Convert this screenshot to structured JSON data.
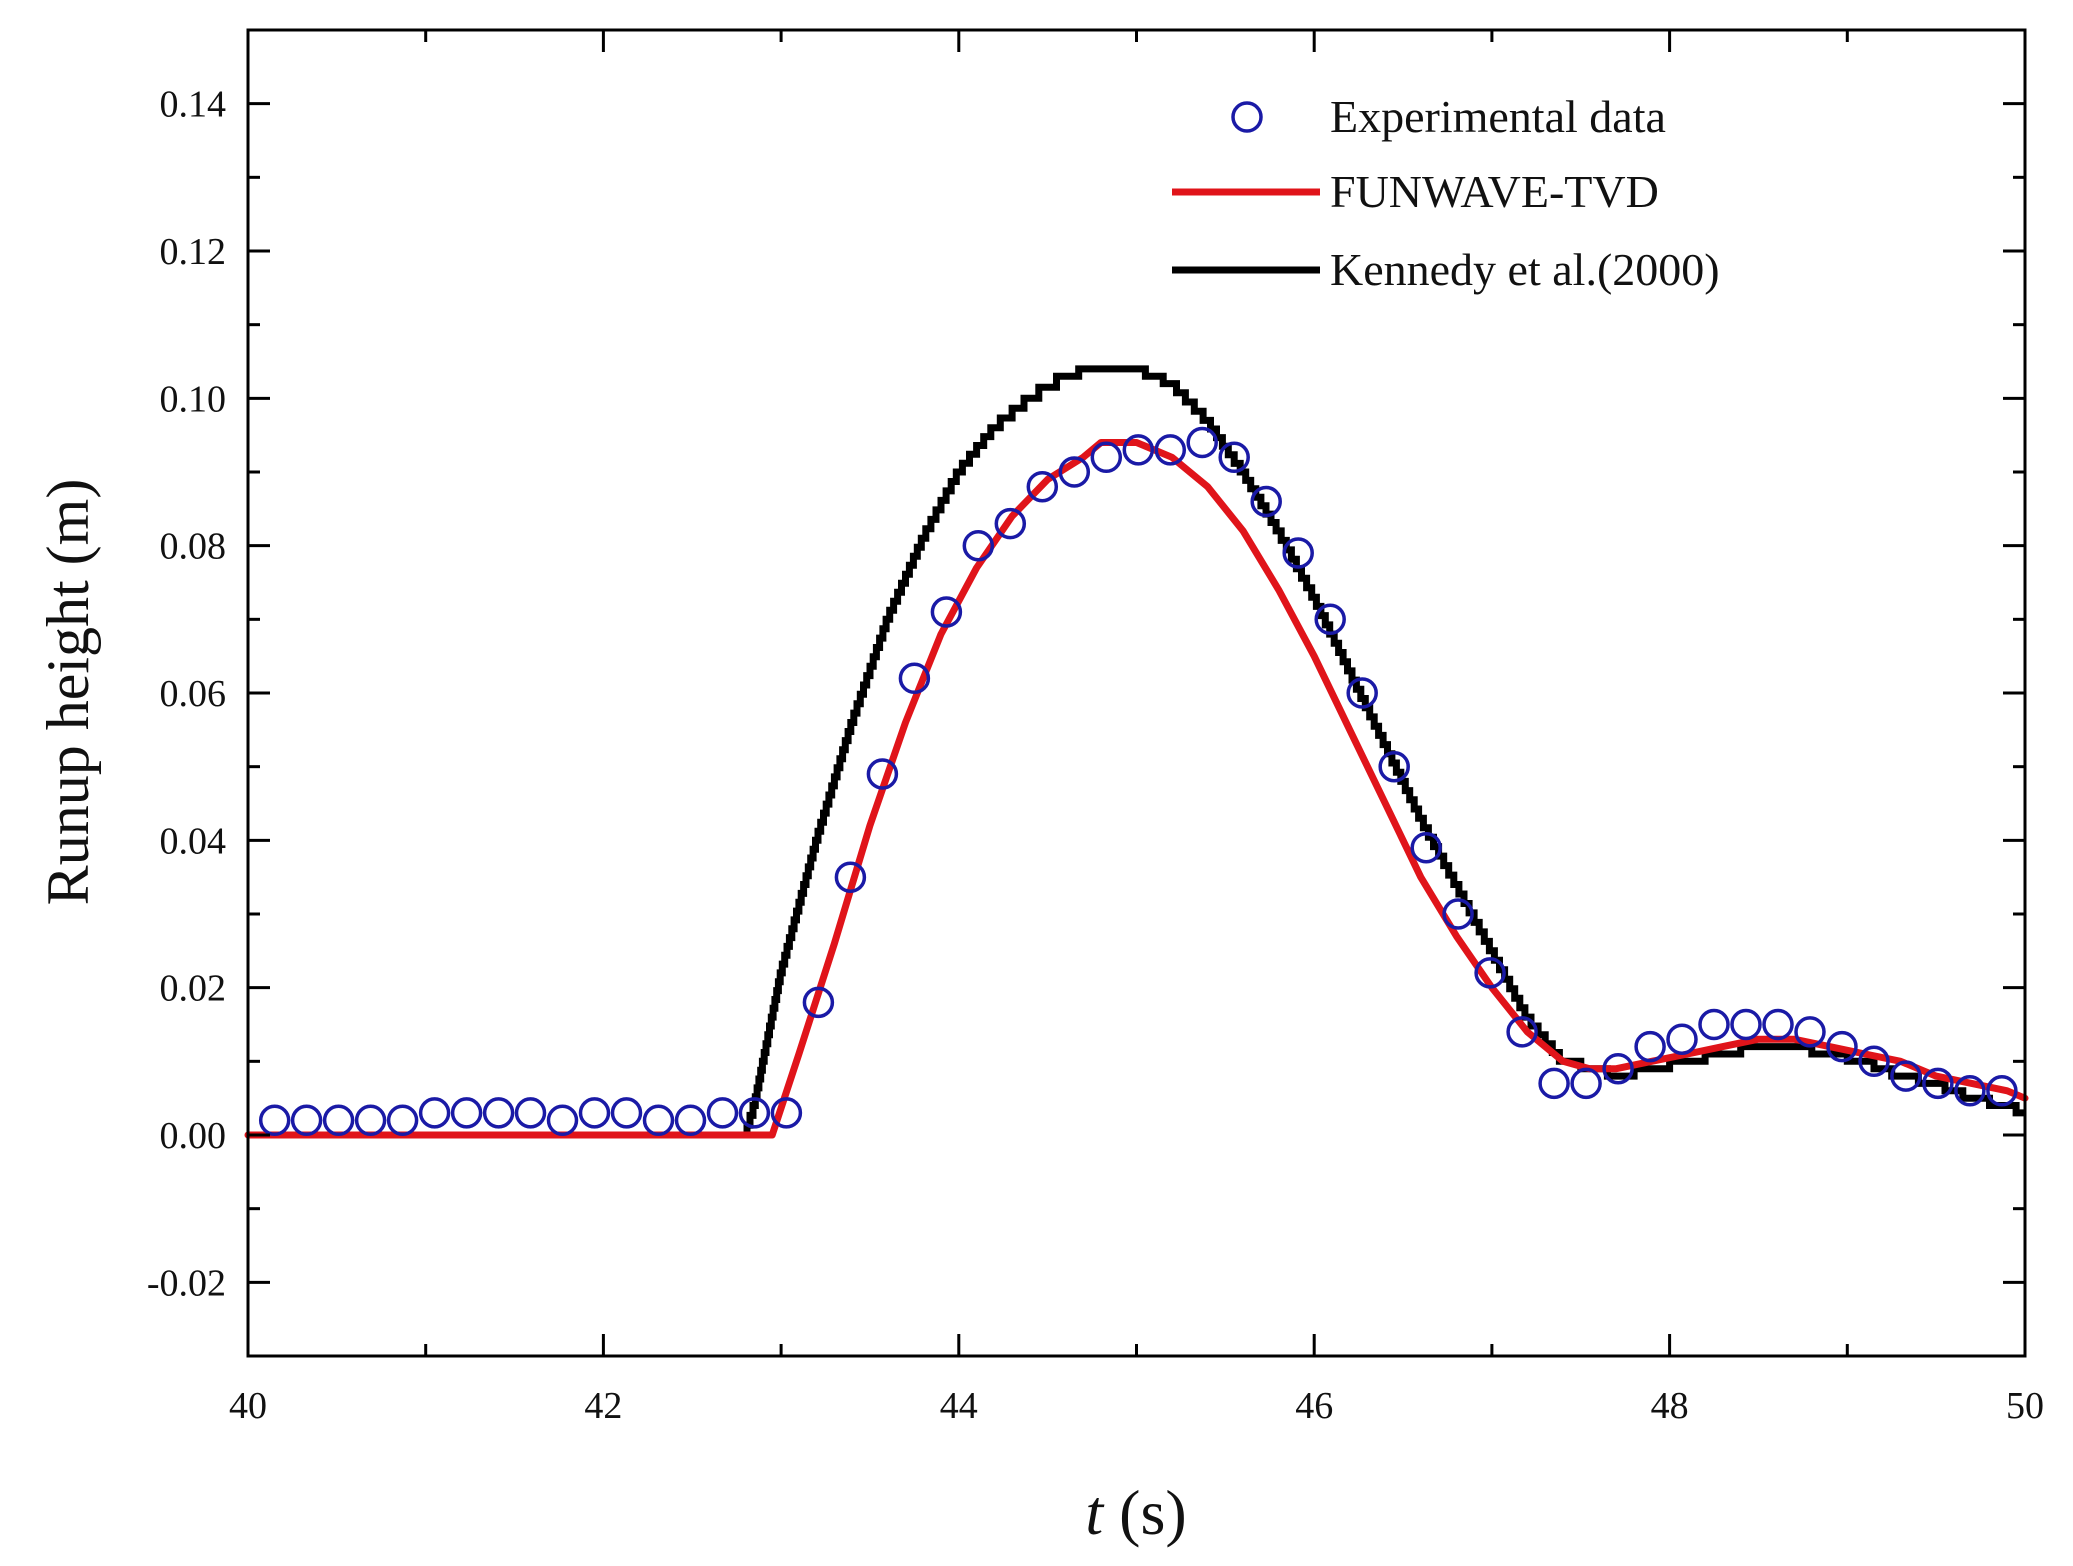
{
  "chart_data": {
    "type": "line",
    "title": "",
    "xlabel": "t (s)",
    "xlabel_var": "t",
    "xlabel_unit": "(s)",
    "ylabel": "Runup height (m)",
    "xlim": [
      40,
      50
    ],
    "ylim": [
      -0.03,
      0.15
    ],
    "xticks": [
      40,
      42,
      44,
      46,
      48,
      50
    ],
    "xtick_labels": [
      "40",
      "42",
      "44",
      "46",
      "48",
      "50"
    ],
    "yticks": [
      -0.02,
      0.0,
      0.02,
      0.04,
      0.06,
      0.08,
      0.1,
      0.12,
      0.14
    ],
    "ytick_labels": [
      "-0.02",
      "0.00",
      "0.02",
      "0.04",
      "0.06",
      "0.08",
      "0.10",
      "0.12",
      "0.14"
    ],
    "legend_position": "top-right",
    "series": [
      {
        "name": "Experimental data",
        "style": "scatter-open-circle",
        "color": "#1a1aa6",
        "x": [
          40.15,
          40.33,
          40.51,
          40.69,
          40.87,
          41.05,
          41.23,
          41.41,
          41.59,
          41.77,
          41.95,
          42.13,
          42.31,
          42.49,
          42.67,
          42.85,
          43.03,
          43.21,
          43.39,
          43.57,
          43.75,
          43.93,
          44.11,
          44.29,
          44.47,
          44.65,
          44.83,
          45.01,
          45.19,
          45.37,
          45.55,
          45.73,
          45.91,
          46.09,
          46.27,
          46.45,
          46.63,
          46.81,
          46.99,
          47.17,
          47.35,
          47.53,
          47.71,
          47.89,
          48.07,
          48.25,
          48.43,
          48.61,
          48.79,
          48.97,
          49.15,
          49.33,
          49.51,
          49.69,
          49.87
        ],
        "y": [
          0.002,
          0.002,
          0.002,
          0.002,
          0.002,
          0.003,
          0.003,
          0.003,
          0.003,
          0.002,
          0.003,
          0.003,
          0.002,
          0.002,
          0.003,
          0.003,
          0.003,
          0.018,
          0.035,
          0.049,
          0.062,
          0.071,
          0.08,
          0.083,
          0.088,
          0.09,
          0.092,
          0.093,
          0.093,
          0.094,
          0.092,
          0.086,
          0.079,
          0.07,
          0.06,
          0.05,
          0.039,
          0.03,
          0.022,
          0.014,
          0.007,
          0.007,
          0.009,
          0.012,
          0.013,
          0.015,
          0.015,
          0.015,
          0.014,
          0.012,
          0.01,
          0.008,
          0.007,
          0.006,
          0.006
        ]
      },
      {
        "name": "FUNWAVE-TVD",
        "style": "line",
        "color": "#e0141a",
        "x": [
          40.0,
          42.8,
          42.95,
          43.1,
          43.3,
          43.5,
          43.7,
          43.9,
          44.1,
          44.3,
          44.5,
          44.7,
          44.8,
          45.0,
          45.2,
          45.4,
          45.6,
          45.8,
          46.0,
          46.2,
          46.4,
          46.6,
          46.8,
          47.0,
          47.2,
          47.4,
          47.55,
          47.7,
          47.9,
          48.1,
          48.3,
          48.5,
          48.7,
          48.9,
          49.1,
          49.3,
          49.5,
          49.7,
          49.9,
          50.0
        ],
        "y": [
          0.0,
          0.0,
          0.0,
          0.011,
          0.026,
          0.042,
          0.056,
          0.068,
          0.077,
          0.084,
          0.089,
          0.092,
          0.094,
          0.094,
          0.092,
          0.088,
          0.082,
          0.074,
          0.065,
          0.055,
          0.045,
          0.035,
          0.027,
          0.02,
          0.014,
          0.01,
          0.009,
          0.009,
          0.01,
          0.011,
          0.012,
          0.013,
          0.013,
          0.012,
          0.011,
          0.01,
          0.008,
          0.007,
          0.006,
          0.005
        ]
      },
      {
        "name": "Kennedy et al.(2000)",
        "style": "step",
        "color": "#000000",
        "x": [
          40.0,
          42.8,
          42.85,
          43.0,
          43.2,
          43.4,
          43.6,
          43.8,
          44.0,
          44.2,
          44.4,
          44.6,
          44.75,
          45.0,
          45.2,
          45.4,
          45.6,
          45.8,
          46.0,
          46.2,
          46.4,
          46.6,
          46.8,
          47.0,
          47.2,
          47.4,
          47.6,
          47.7,
          47.9,
          48.1,
          48.3,
          48.5,
          48.7,
          48.9,
          49.1,
          49.3,
          49.5,
          49.7,
          49.9,
          50.0
        ],
        "y": [
          0.0,
          0.0,
          0.004,
          0.022,
          0.04,
          0.056,
          0.07,
          0.081,
          0.09,
          0.096,
          0.1,
          0.103,
          0.104,
          0.104,
          0.102,
          0.097,
          0.09,
          0.082,
          0.073,
          0.063,
          0.053,
          0.043,
          0.034,
          0.025,
          0.016,
          0.01,
          0.009,
          0.008,
          0.009,
          0.01,
          0.011,
          0.012,
          0.012,
          0.011,
          0.01,
          0.008,
          0.007,
          0.005,
          0.004,
          0.003
        ]
      }
    ]
  }
}
